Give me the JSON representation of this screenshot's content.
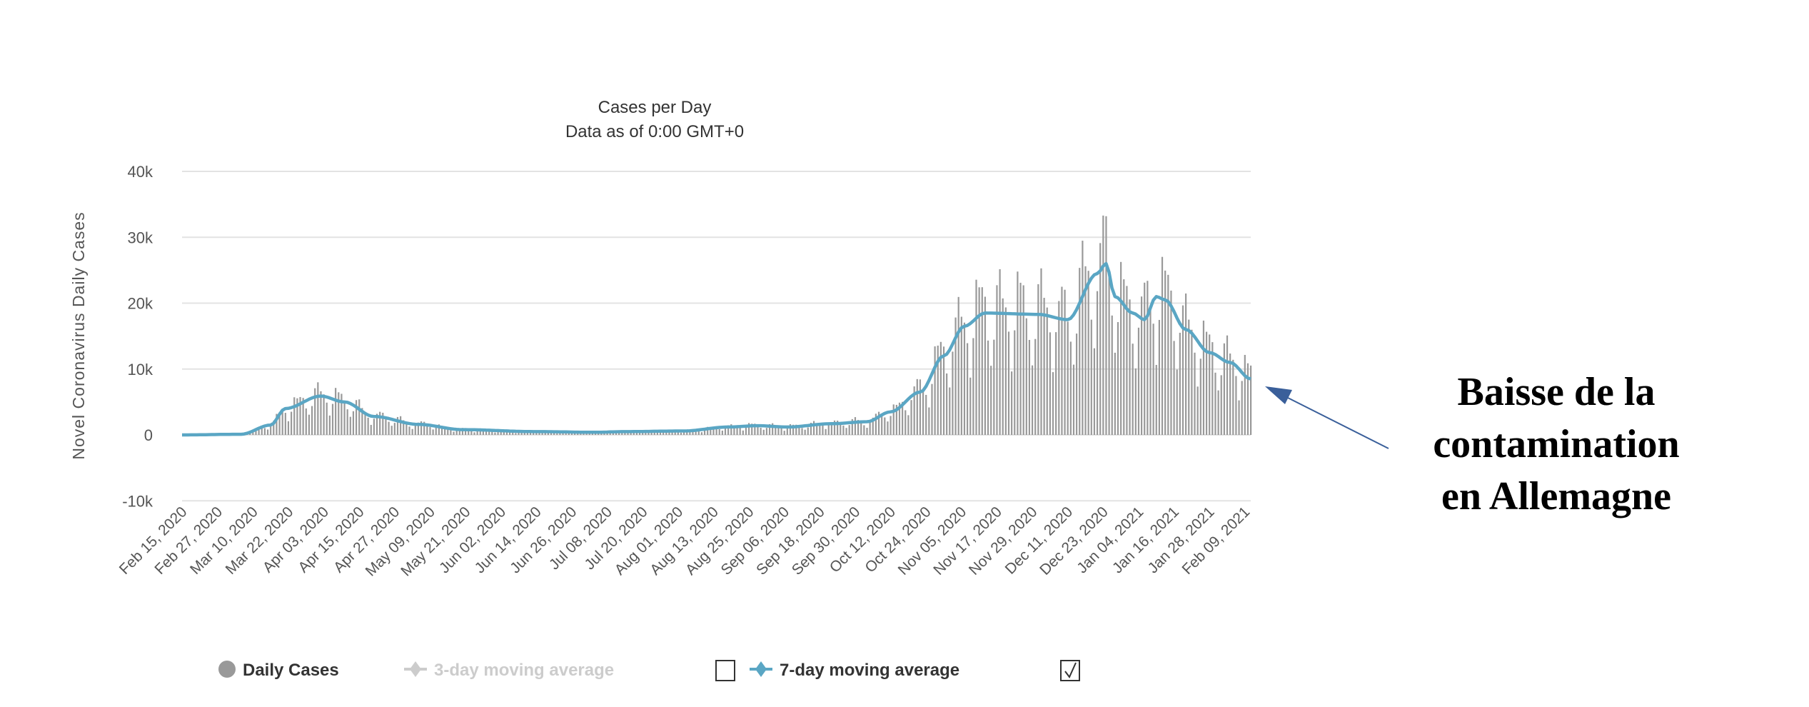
{
  "chart_data": {
    "type": "bar",
    "title": "Cases per Day",
    "subtitle": "Data as of 0:00 GMT+0",
    "ylabel": "Novel Coronavirus Daily Cases",
    "xlabel": "",
    "ylim": [
      -10000,
      40000
    ],
    "yticks": [
      -10000,
      0,
      10000,
      20000,
      30000,
      40000
    ],
    "ytick_labels": [
      "-10k",
      "0",
      "10k",
      "20k",
      "30k",
      "40k"
    ],
    "grid": true,
    "start_date": "Feb 15, 2020",
    "num_days": 363,
    "x_tick_labels": [
      "Feb 15, 2020",
      "Feb 27, 2020",
      "Mar 10, 2020",
      "Mar 22, 2020",
      "Apr 03, 2020",
      "Apr 15, 2020",
      "Apr 27, 2020",
      "May 09, 2020",
      "May 21, 2020",
      "Jun 02, 2020",
      "Jun 14, 2020",
      "Jun 26, 2020",
      "Jul 08, 2020",
      "Jul 20, 2020",
      "Aug 01, 2020",
      "Aug 13, 2020",
      "Aug 25, 2020",
      "Sep 06, 2020",
      "Sep 18, 2020",
      "Sep 30, 2020",
      "Oct 12, 2020",
      "Oct 24, 2020",
      "Nov 05, 2020",
      "Nov 17, 2020",
      "Nov 29, 2020",
      "Dec 11, 2020",
      "Dec 23, 2020",
      "Jan 04, 2021",
      "Jan 16, 2021",
      "Jan 28, 2021",
      "Feb 09, 2021"
    ],
    "x_tick_every_days": 12,
    "seven_day_avg_keypoints": [
      [
        0,
        0
      ],
      [
        20,
        100
      ],
      [
        30,
        1500
      ],
      [
        35,
        4000
      ],
      [
        47,
        5900
      ],
      [
        55,
        5000
      ],
      [
        65,
        2800
      ],
      [
        80,
        1600
      ],
      [
        95,
        800
      ],
      [
        120,
        500
      ],
      [
        140,
        400
      ],
      [
        150,
        500
      ],
      [
        170,
        600
      ],
      [
        185,
        1200
      ],
      [
        195,
        1400
      ],
      [
        205,
        1200
      ],
      [
        220,
        1700
      ],
      [
        232,
        2000
      ],
      [
        240,
        3500
      ],
      [
        250,
        6500
      ],
      [
        258,
        12000
      ],
      [
        265,
        16500
      ],
      [
        272,
        18500
      ],
      [
        290,
        18300
      ],
      [
        300,
        17500
      ],
      [
        310,
        24500
      ],
      [
        313,
        26000
      ],
      [
        316,
        21000
      ],
      [
        322,
        18500
      ],
      [
        326,
        17500
      ],
      [
        330,
        21000
      ],
      [
        333,
        20500
      ],
      [
        340,
        16000
      ],
      [
        348,
        12500
      ],
      [
        355,
        11000
      ],
      [
        362,
        8500
      ]
    ],
    "daily_weekday_factors": [
      0.8,
      0.55,
      0.85,
      1.25,
      1.3,
      1.2,
      1.05
    ],
    "series": [
      {
        "name": "Daily Cases",
        "type": "bar",
        "color": "#999999",
        "visible": true
      },
      {
        "name": "3-day moving average",
        "type": "line",
        "color": "#cccccc",
        "visible": false
      },
      {
        "name": "7-day moving average",
        "type": "line",
        "color": "#5aa6c4",
        "visible": true
      }
    ],
    "legend": {
      "position": "bottom",
      "checkbox_3day": false,
      "checkbox_7day": true
    }
  },
  "annotation": {
    "lines": [
      "Baisse de la",
      "contamination",
      "en Allemagne"
    ],
    "arrow_color": "#3a5f9a"
  }
}
